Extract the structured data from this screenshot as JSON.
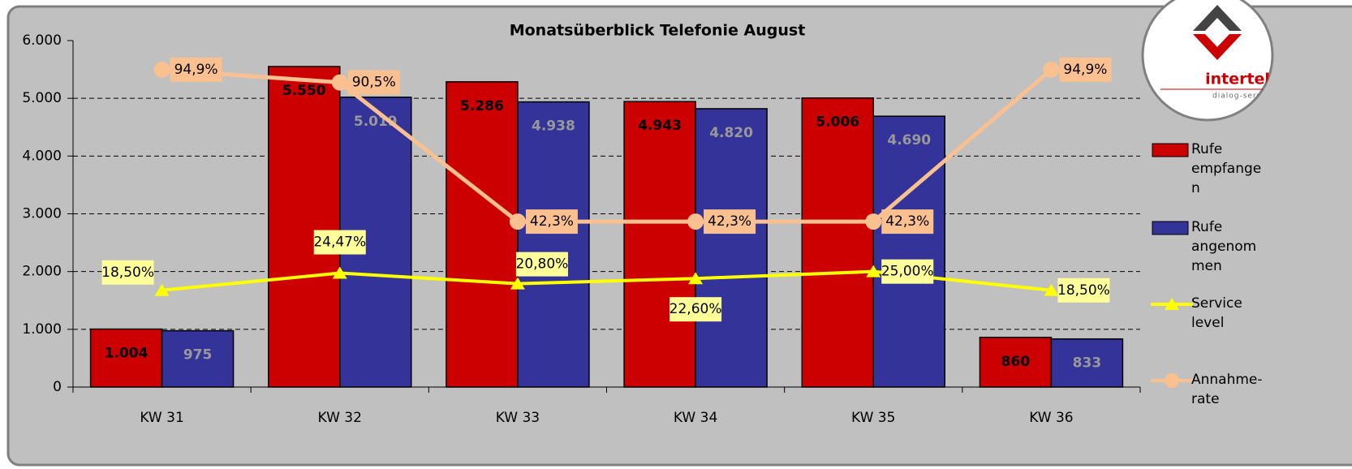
{
  "chart_data": {
    "type": "bar",
    "title": "Monatsüberblick Telefonie August",
    "categories": [
      "KW 31",
      "KW 32",
      "KW 33",
      "KW 34",
      "KW 35",
      "KW 36"
    ],
    "series": [
      {
        "name": "Rufe empfangen",
        "type": "bar",
        "color": "#cc0000",
        "values": [
          1004,
          5550,
          5286,
          4943,
          5006,
          860
        ],
        "value_labels": [
          "1.004",
          "5.550",
          "5.286",
          "4.943",
          "5.006",
          "860"
        ]
      },
      {
        "name": "Rufe angenommen",
        "type": "bar",
        "color": "#333399",
        "values": [
          975,
          5019,
          4938,
          4820,
          4690,
          833
        ],
        "value_labels": [
          "975",
          "5.019",
          "4.938",
          "4.820",
          "4.690",
          "833"
        ]
      },
      {
        "name": "Service level",
        "type": "line",
        "axis": "y2",
        "color": "#ffff00",
        "values": [
          18.5,
          24.47,
          20.8,
          22.6,
          25.0,
          18.5
        ],
        "value_labels": [
          "18,50%",
          "24,47%",
          "20,80%",
          "22,60%",
          "25,00%",
          "18,50%"
        ]
      },
      {
        "name": "Annahme-rate",
        "type": "line",
        "axis": "y2",
        "color": "#fac090",
        "values": [
          94.9,
          90.5,
          42.3,
          42.3,
          42.3,
          94.9
        ],
        "value_labels": [
          "94,9%",
          "90,5%",
          "42,3%",
          "42,3%",
          "42,3%",
          "94,9%"
        ]
      }
    ],
    "ylim": [
      0,
      6000
    ],
    "yticks": [
      0,
      {
        "value": 1000,
        "label": "1.000"
      },
      {
        "value": 2000,
        "label": "2.000"
      },
      {
        "value": 3000,
        "label": "3.000"
      },
      {
        "value": 4000,
        "label": "4.000"
      },
      {
        "value": 5000,
        "label": "5.000"
      },
      {
        "value": 6000,
        "label": "6.000"
      }
    ],
    "y2lim": [
      -15,
      105
    ],
    "grid": true,
    "legend": "right"
  },
  "logo": {
    "name": "intertel",
    "tagline": "dialog-service-gmb"
  }
}
